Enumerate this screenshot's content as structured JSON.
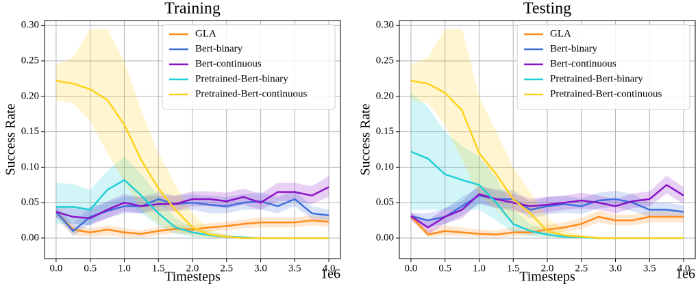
{
  "chart_data": [
    {
      "type": "line",
      "title": "Training",
      "xlabel": "Timesteps",
      "ylabel": "Success Rate",
      "x_offset_label": "1e6",
      "x": [
        0,
        0.25,
        0.5,
        0.75,
        1,
        1.25,
        1.5,
        1.75,
        2,
        2.25,
        2.5,
        2.75,
        3,
        3.25,
        3.5,
        3.75,
        4
      ],
      "xlim": [
        -0.17,
        4.17
      ],
      "ylim": [
        -0.029,
        0.307
      ],
      "xticks": [
        {
          "value": 0,
          "label": "0.0"
        },
        {
          "value": 0.5,
          "label": "0.5"
        },
        {
          "value": 1,
          "label": "1.0"
        },
        {
          "value": 1.5,
          "label": "1.5"
        },
        {
          "value": 2,
          "label": "2.0"
        },
        {
          "value": 2.5,
          "label": "2.5"
        },
        {
          "value": 3,
          "label": "3.0"
        },
        {
          "value": 3.5,
          "label": "3.5"
        },
        {
          "value": 4,
          "label": "4.0"
        }
      ],
      "yticks": [
        {
          "value": 0,
          "label": "0.00"
        },
        {
          "value": 0.05,
          "label": "0.05"
        },
        {
          "value": 0.1,
          "label": "0.10"
        },
        {
          "value": 0.15,
          "label": "0.15"
        },
        {
          "value": 0.2,
          "label": "0.20"
        },
        {
          "value": 0.25,
          "label": "0.25"
        },
        {
          "value": 0.3,
          "label": "0.30"
        }
      ],
      "grid": true,
      "legend": "upper right",
      "series": [
        {
          "name": "GLA",
          "color": "#ff8c1a",
          "values": [
            0.037,
            0.012,
            0.008,
            0.012,
            0.008,
            0.006,
            0.01,
            0.013,
            0.012,
            0.015,
            0.017,
            0.02,
            0.022,
            0.022,
            0.022,
            0.025,
            0.023
          ],
          "lower": [
            0.03,
            0.004,
            0.002,
            0.004,
            0.002,
            0.001,
            0.004,
            0.007,
            0.006,
            0.009,
            0.011,
            0.014,
            0.015,
            0.015,
            0.015,
            0.018,
            0.016
          ],
          "upper": [
            0.04,
            0.018,
            0.014,
            0.018,
            0.014,
            0.011,
            0.016,
            0.019,
            0.018,
            0.021,
            0.023,
            0.026,
            0.029,
            0.029,
            0.029,
            0.032,
            0.03
          ]
        },
        {
          "name": "Bert-binary",
          "color": "#3f6fdc",
          "values": [
            0.037,
            0.01,
            0.03,
            0.038,
            0.045,
            0.045,
            0.055,
            0.048,
            0.05,
            0.047,
            0.045,
            0.05,
            0.052,
            0.045,
            0.055,
            0.035,
            0.032
          ],
          "lower": [
            0.03,
            0.003,
            0.02,
            0.028,
            0.035,
            0.035,
            0.045,
            0.038,
            0.04,
            0.035,
            0.035,
            0.04,
            0.04,
            0.035,
            0.045,
            0.027,
            0.025
          ],
          "upper": [
            0.045,
            0.02,
            0.045,
            0.05,
            0.058,
            0.058,
            0.065,
            0.06,
            0.062,
            0.06,
            0.058,
            0.062,
            0.065,
            0.058,
            0.068,
            0.045,
            0.04
          ]
        },
        {
          "name": "Bert-continuous",
          "color": "#8a12c8",
          "values": [
            0.037,
            0.03,
            0.028,
            0.04,
            0.05,
            0.045,
            0.048,
            0.048,
            0.055,
            0.055,
            0.052,
            0.058,
            0.05,
            0.065,
            0.065,
            0.06,
            0.072
          ],
          "lower": [
            0.03,
            0.02,
            0.018,
            0.028,
            0.038,
            0.035,
            0.038,
            0.038,
            0.045,
            0.045,
            0.042,
            0.047,
            0.04,
            0.052,
            0.052,
            0.048,
            0.058
          ],
          "upper": [
            0.045,
            0.042,
            0.04,
            0.052,
            0.062,
            0.058,
            0.06,
            0.06,
            0.066,
            0.066,
            0.064,
            0.07,
            0.062,
            0.078,
            0.078,
            0.073,
            0.088
          ]
        },
        {
          "name": "Pretrained-Bert-binary",
          "color": "#1fcfd6",
          "values": [
            0.044,
            0.044,
            0.04,
            0.068,
            0.082,
            0.06,
            0.035,
            0.015,
            0.008,
            0.004,
            0.002,
            0.001,
            0,
            0,
            0,
            0,
            0
          ],
          "lower": [
            0.02,
            0.02,
            0.018,
            0.04,
            0.05,
            0.035,
            0.018,
            0.006,
            0.002,
            0.001,
            0,
            0,
            0,
            0,
            0,
            0,
            0
          ],
          "upper": [
            0.078,
            0.076,
            0.068,
            0.095,
            0.115,
            0.09,
            0.06,
            0.028,
            0.016,
            0.009,
            0.005,
            0.002,
            0.001,
            0,
            0,
            0,
            0
          ]
        },
        {
          "name": "Pretrained-Bert-continuous",
          "color": "#ffd21a",
          "values": [
            0.222,
            0.218,
            0.21,
            0.195,
            0.16,
            0.11,
            0.07,
            0.04,
            0.015,
            0.005,
            0.002,
            0,
            0,
            0,
            0,
            0,
            0
          ],
          "lower": [
            0.195,
            0.19,
            0.165,
            0.12,
            0.08,
            0.04,
            0.02,
            0.01,
            0.003,
            0.001,
            0,
            0,
            0,
            0,
            0,
            0,
            0
          ],
          "upper": [
            0.245,
            0.255,
            0.295,
            0.295,
            0.25,
            0.18,
            0.12,
            0.075,
            0.035,
            0.012,
            0.005,
            0.002,
            0,
            0,
            0,
            0,
            0
          ]
        }
      ]
    },
    {
      "type": "line",
      "title": "Testing",
      "xlabel": "Timesteps",
      "ylabel": "Success Rate",
      "x_offset_label": "1e6",
      "x": [
        0,
        0.25,
        0.5,
        0.75,
        1,
        1.25,
        1.5,
        1.75,
        2,
        2.25,
        2.5,
        2.75,
        3,
        3.25,
        3.5,
        3.75,
        4
      ],
      "xlim": [
        -0.17,
        4.17
      ],
      "ylim": [
        -0.029,
        0.307
      ],
      "xticks": [
        {
          "value": 0,
          "label": "0.0"
        },
        {
          "value": 0.5,
          "label": "0.5"
        },
        {
          "value": 1,
          "label": "1.0"
        },
        {
          "value": 1.5,
          "label": "1.5"
        },
        {
          "value": 2,
          "label": "2.0"
        },
        {
          "value": 2.5,
          "label": "2.5"
        },
        {
          "value": 3,
          "label": "3.0"
        },
        {
          "value": 3.5,
          "label": "3.5"
        },
        {
          "value": 4,
          "label": "4.0"
        }
      ],
      "yticks": [
        {
          "value": 0,
          "label": "0.00"
        },
        {
          "value": 0.05,
          "label": "0.05"
        },
        {
          "value": 0.1,
          "label": "0.10"
        },
        {
          "value": 0.15,
          "label": "0.15"
        },
        {
          "value": 0.2,
          "label": "0.20"
        },
        {
          "value": 0.25,
          "label": "0.25"
        },
        {
          "value": 0.3,
          "label": "0.30"
        }
      ],
      "grid": true,
      "legend": "upper right",
      "series": [
        {
          "name": "GLA",
          "color": "#ff8c1a",
          "values": [
            0.031,
            0.005,
            0.01,
            0.008,
            0.006,
            0.005,
            0.008,
            0.008,
            0.012,
            0.015,
            0.02,
            0.03,
            0.025,
            0.025,
            0.03,
            0.03,
            0.03
          ],
          "lower": [
            0.026,
            0.001,
            0.004,
            0.003,
            0.002,
            0.001,
            0.003,
            0.003,
            0.006,
            0.009,
            0.013,
            0.022,
            0.018,
            0.018,
            0.022,
            0.022,
            0.022
          ],
          "upper": [
            0.036,
            0.012,
            0.018,
            0.015,
            0.012,
            0.011,
            0.015,
            0.015,
            0.019,
            0.022,
            0.028,
            0.039,
            0.033,
            0.033,
            0.038,
            0.038,
            0.038
          ]
        },
        {
          "name": "Bert-binary",
          "color": "#3f6fdc",
          "values": [
            0.031,
            0.025,
            0.03,
            0.045,
            0.06,
            0.055,
            0.055,
            0.04,
            0.045,
            0.048,
            0.045,
            0.053,
            0.055,
            0.05,
            0.04,
            0.04,
            0.037
          ],
          "lower": [
            0.026,
            0.015,
            0.02,
            0.032,
            0.048,
            0.042,
            0.042,
            0.028,
            0.033,
            0.036,
            0.034,
            0.042,
            0.044,
            0.038,
            0.03,
            0.03,
            0.028
          ],
          "upper": [
            0.036,
            0.035,
            0.042,
            0.058,
            0.072,
            0.068,
            0.068,
            0.052,
            0.058,
            0.06,
            0.056,
            0.064,
            0.067,
            0.062,
            0.05,
            0.05,
            0.046
          ]
        },
        {
          "name": "Bert-continuous",
          "color": "#8a12c8",
          "values": [
            0.031,
            0.015,
            0.03,
            0.04,
            0.062,
            0.055,
            0.05,
            0.045,
            0.047,
            0.05,
            0.053,
            0.05,
            0.045,
            0.052,
            0.055,
            0.075,
            0.06
          ],
          "lower": [
            0.026,
            0.005,
            0.02,
            0.028,
            0.05,
            0.043,
            0.038,
            0.034,
            0.036,
            0.04,
            0.042,
            0.04,
            0.035,
            0.042,
            0.045,
            0.063,
            0.048
          ],
          "upper": [
            0.036,
            0.025,
            0.042,
            0.052,
            0.075,
            0.068,
            0.062,
            0.056,
            0.058,
            0.06,
            0.064,
            0.06,
            0.055,
            0.063,
            0.066,
            0.088,
            0.072
          ]
        },
        {
          "name": "Pretrained-Bert-binary",
          "color": "#1fcfd6",
          "values": [
            0.122,
            0.112,
            0.09,
            0.082,
            0.075,
            0.05,
            0.02,
            0.01,
            0.005,
            0.002,
            0.001,
            0,
            0,
            0,
            0,
            0,
            0
          ],
          "lower": [
            0.04,
            0.04,
            0.04,
            0.04,
            0.04,
            0.025,
            0.008,
            0.003,
            0.001,
            0,
            0,
            0,
            0,
            0,
            0,
            0,
            0
          ],
          "upper": [
            0.205,
            0.185,
            0.15,
            0.13,
            0.115,
            0.085,
            0.04,
            0.02,
            0.01,
            0.005,
            0.002,
            0,
            0,
            0,
            0,
            0,
            0
          ]
        },
        {
          "name": "Pretrained-Bert-continuous",
          "color": "#ffd21a",
          "values": [
            0.222,
            0.218,
            0.205,
            0.18,
            0.12,
            0.09,
            0.055,
            0.035,
            0.01,
            0.004,
            0.002,
            0,
            0,
            0,
            0,
            0,
            0
          ],
          "lower": [
            0.195,
            0.19,
            0.16,
            0.11,
            0.06,
            0.04,
            0.02,
            0.01,
            0.002,
            0.001,
            0,
            0,
            0,
            0,
            0,
            0,
            0
          ],
          "upper": [
            0.245,
            0.255,
            0.295,
            0.295,
            0.2,
            0.15,
            0.1,
            0.065,
            0.03,
            0.01,
            0.005,
            0.002,
            0,
            0,
            0,
            0,
            0
          ]
        }
      ]
    }
  ]
}
